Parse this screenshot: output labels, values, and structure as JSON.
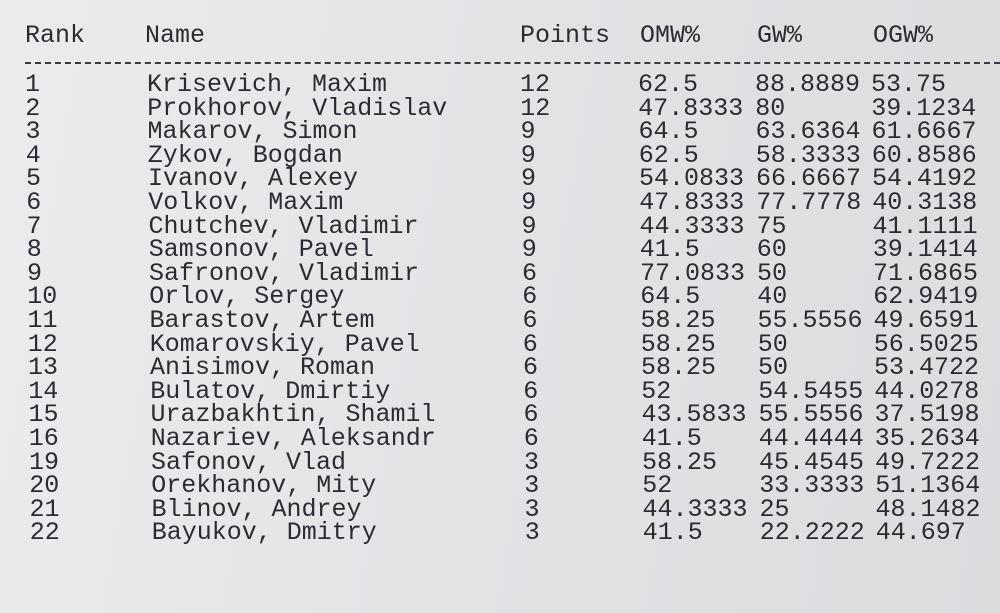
{
  "table": {
    "columns": [
      "Rank",
      "Name",
      "Points",
      "OMW%",
      "GW%",
      "OGW%"
    ],
    "rows": [
      {
        "rank": "1",
        "name": "Krisevich, Maxim",
        "points": "12",
        "omw": "62.5",
        "gw": "88.8889",
        "ogw": "53.75"
      },
      {
        "rank": "2",
        "name": "Prokhorov, Vladislav",
        "points": "12",
        "omw": "47.8333",
        "gw": "80",
        "ogw": "39.1234"
      },
      {
        "rank": "3",
        "name": "Makarov, Simon",
        "points": "9",
        "omw": "64.5",
        "gw": "63.6364",
        "ogw": "61.6667"
      },
      {
        "rank": "4",
        "name": "Zykov, Bogdan",
        "points": "9",
        "omw": "62.5",
        "gw": "58.3333",
        "ogw": "60.8586"
      },
      {
        "rank": "5",
        "name": "Ivanov, Alexey",
        "points": "9",
        "omw": "54.0833",
        "gw": "66.6667",
        "ogw": "54.4192"
      },
      {
        "rank": "6",
        "name": "Volkov, Maxim",
        "points": "9",
        "omw": "47.8333",
        "gw": "77.7778",
        "ogw": "40.3138"
      },
      {
        "rank": "7",
        "name": "Chutchev, Vladimir",
        "points": "9",
        "omw": "44.3333",
        "gw": "75",
        "ogw": "41.1111"
      },
      {
        "rank": "8",
        "name": "Samsonov, Pavel",
        "points": "9",
        "omw": "41.5",
        "gw": "60",
        "ogw": "39.1414"
      },
      {
        "rank": "9",
        "name": "Safronov, Vladimir",
        "points": "6",
        "omw": "77.0833",
        "gw": "50",
        "ogw": "71.6865"
      },
      {
        "rank": "10",
        "name": "Orlov, Sergey",
        "points": "6",
        "omw": "64.5",
        "gw": "40",
        "ogw": "62.9419"
      },
      {
        "rank": "11",
        "name": "Barastov, Artem",
        "points": "6",
        "omw": "58.25",
        "gw": "55.5556",
        "ogw": "49.6591"
      },
      {
        "rank": "12",
        "name": "Komarovskiy, Pavel",
        "points": "6",
        "omw": "58.25",
        "gw": "50",
        "ogw": "56.5025"
      },
      {
        "rank": "13",
        "name": "Anisimov, Roman",
        "points": "6",
        "omw": "58.25",
        "gw": "50",
        "ogw": "53.4722"
      },
      {
        "rank": "14",
        "name": "Bulatov, Dmirtiy",
        "points": "6",
        "omw": "52",
        "gw": "54.5455",
        "ogw": "44.0278"
      },
      {
        "rank": "15",
        "name": "Urazbakhtin, Shamil",
        "points": "6",
        "omw": "43.5833",
        "gw": "55.5556",
        "ogw": "37.5198"
      },
      {
        "rank": "16",
        "name": "Nazariev, Aleksandr",
        "points": "6",
        "omw": "41.5",
        "gw": "44.4444",
        "ogw": "35.2634"
      },
      {
        "rank": "19",
        "name": "Safonov, Vlad",
        "points": "3",
        "omw": "58.25",
        "gw": "45.4545",
        "ogw": "49.7222"
      },
      {
        "rank": "20",
        "name": "Orekhanov, Mity",
        "points": "3",
        "omw": "52",
        "gw": "33.3333",
        "ogw": "51.1364"
      },
      {
        "rank": "21",
        "name": "Blinov, Andrey",
        "points": "3",
        "omw": "44.3333",
        "gw": "25",
        "ogw": "48.1482"
      },
      {
        "rank": "22",
        "name": "Bayukov, Dmitry",
        "points": "3",
        "omw": "41.5",
        "gw": "22.2222",
        "ogw": "44.697"
      }
    ]
  }
}
